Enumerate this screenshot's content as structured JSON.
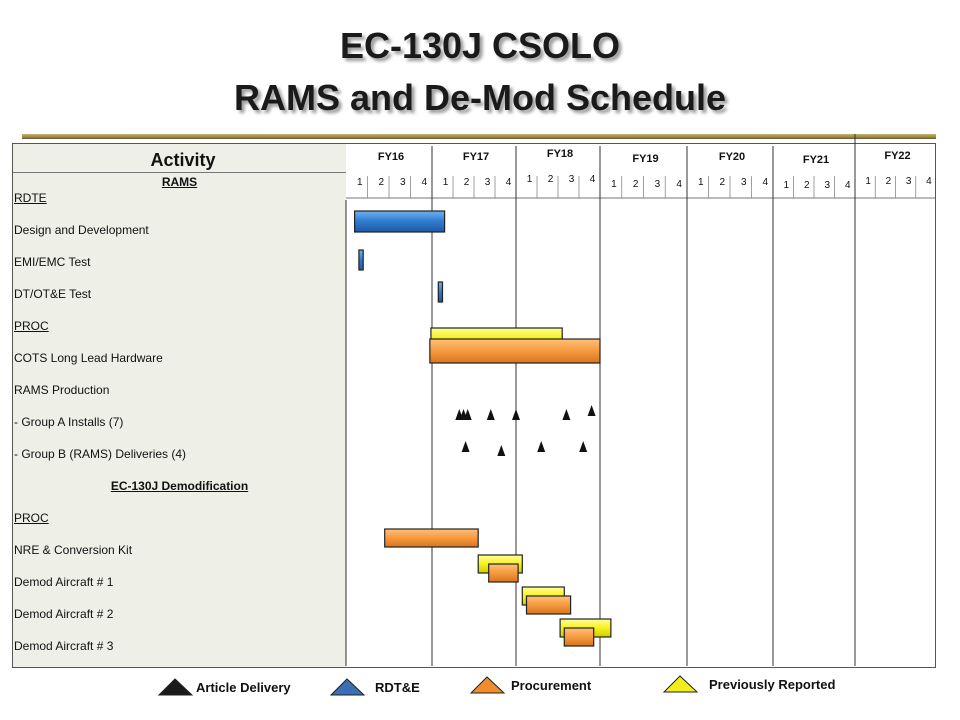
{
  "title": {
    "line1": "EC-130J CSOLO",
    "line2": "RAMS and De-Mod Schedule"
  },
  "activity_header": "Activity",
  "fiscal_years": [
    "FY16",
    "FY17",
    "FY18",
    "FY19",
    "FY20",
    "FY21",
    "FY22"
  ],
  "quarter_labels": [
    "1",
    "2",
    "3",
    "4"
  ],
  "rows": [
    {
      "label": "RAMS",
      "style": "centered-underline"
    },
    {
      "label": "RDTE",
      "style": "underline"
    },
    {
      "label": "Design and Development",
      "style": "plain"
    },
    {
      "label": "EMI/EMC Test",
      "style": "plain"
    },
    {
      "label": "DT/OT&E Test",
      "style": "plain"
    },
    {
      "label": "PROC",
      "style": "underline"
    },
    {
      "label": "COTS  Long Lead Hardware",
      "style": "plain"
    },
    {
      "label": "RAMS Production",
      "style": "plain"
    },
    {
      "label": "-    Group A Installs (7)",
      "style": "plain"
    },
    {
      "label": "-    Group B (RAMS) Deliveries  (4)",
      "style": "plain"
    },
    {
      "label": "EC-130J  Demodification",
      "style": "centered-underline"
    },
    {
      "label": "PROC",
      "style": "underline"
    },
    {
      "label": "NRE & Conversion  Kit",
      "style": "plain"
    },
    {
      "label": "Demod Aircraft # 1",
      "style": "plain"
    },
    {
      "label": "Demod Aircraft # 2",
      "style": "plain"
    },
    {
      "label": "Demod Aircraft # 3",
      "style": "plain"
    }
  ],
  "legend": [
    {
      "label": "Article Delivery",
      "color": "#1a1a1a"
    },
    {
      "label": "RDT&E",
      "color": "#3a6fb5"
    },
    {
      "label": "Procurement",
      "color": "#f08c2c"
    },
    {
      "label": "Previously Reported",
      "color": "#f2ee1c"
    }
  ],
  "chart_data": {
    "type": "gantt",
    "time_unit": "fiscal quarter index (0 = start of FY16 Q1)",
    "colors": {
      "rdte": "#2f7ad0",
      "procurement": "#f59a3e",
      "previously_reported": "#f5f21a",
      "milestone": "#111111"
    },
    "bars": [
      {
        "row": "Design and Development",
        "kind": "rdte",
        "start": 0.4,
        "end": 4.6
      },
      {
        "row": "EMI/EMC Test",
        "kind": "rdte",
        "start": 0.6,
        "end": 0.8
      },
      {
        "row": "DT/OT&E Test",
        "kind": "rdte",
        "start": 4.3,
        "end": 4.5
      },
      {
        "row": "COTS  Long Lead Hardware",
        "kind": "previously_reported",
        "start": 3.95,
        "end": 10.2
      },
      {
        "row": "COTS  Long Lead Hardware",
        "kind": "procurement",
        "start": 3.9,
        "end": 12.0
      },
      {
        "row": "NRE & Conversion  Kit",
        "kind": "procurement",
        "start": 1.8,
        "end": 6.2
      },
      {
        "row": "Demod Aircraft # 1",
        "kind": "previously_reported",
        "start": 6.2,
        "end": 8.3
      },
      {
        "row": "Demod Aircraft # 1",
        "kind": "procurement",
        "start": 6.7,
        "end": 8.1
      },
      {
        "row": "Demod Aircraft # 2",
        "kind": "previously_reported",
        "start": 8.3,
        "end": 10.3
      },
      {
        "row": "Demod Aircraft # 2",
        "kind": "procurement",
        "start": 8.5,
        "end": 10.6
      },
      {
        "row": "Demod Aircraft # 3",
        "kind": "previously_reported",
        "start": 10.1,
        "end": 12.5
      },
      {
        "row": "Demod Aircraft # 3",
        "kind": "procurement",
        "start": 10.3,
        "end": 11.7
      }
    ],
    "milestones": [
      {
        "row": "-    Group A Installs (7)",
        "t": [
          5.3,
          5.5,
          5.7,
          6.8,
          8.0,
          10.4,
          11.6
        ]
      },
      {
        "row": "-    Group B (RAMS) Deliveries  (4)",
        "t": [
          5.6,
          7.3,
          9.2,
          11.2
        ]
      }
    ]
  }
}
